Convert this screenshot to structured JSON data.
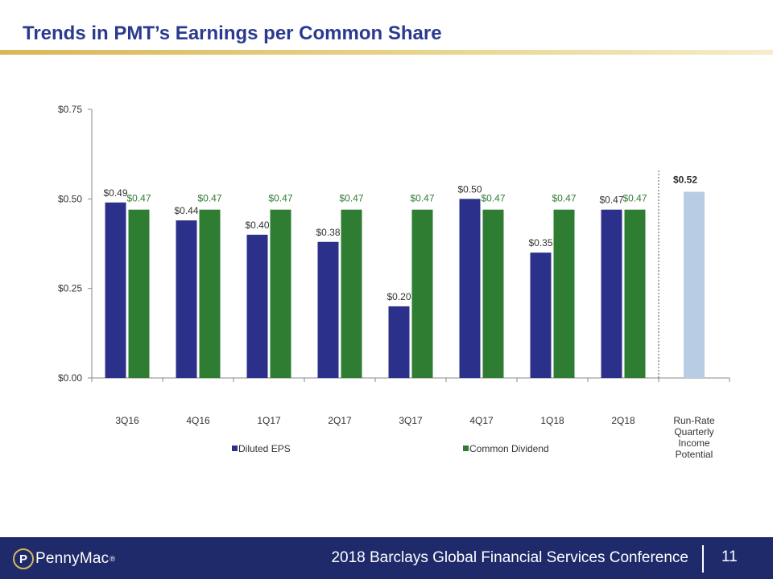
{
  "page": {
    "title": "Trends in PMT’s Earnings per Common Share"
  },
  "colors": {
    "eps": "#2b318a",
    "dividend": "#2e7d32",
    "run_rate": "#b8cce4",
    "title": "#2b3a8f",
    "footer": "#1f2a6b"
  },
  "chart_data": {
    "type": "bar",
    "title": "",
    "categories": [
      "3Q16",
      "4Q16",
      "1Q17",
      "2Q17",
      "3Q17",
      "4Q17",
      "1Q18",
      "2Q18"
    ],
    "series": [
      {
        "name": "Diluted EPS",
        "values": [
          0.49,
          0.44,
          0.4,
          0.38,
          0.2,
          0.5,
          0.35,
          0.47
        ],
        "labels": [
          "$0.49",
          "$0.44",
          "$0.40",
          "$0.38",
          "$0.20",
          "$0.50",
          "$0.35",
          "$0.47"
        ]
      },
      {
        "name": "Common Dividend",
        "values": [
          0.47,
          0.47,
          0.47,
          0.47,
          0.47,
          0.47,
          0.47,
          0.47
        ],
        "labels": [
          "$0.47",
          "$0.47",
          "$0.47",
          "$0.47",
          "$0.47",
          "$0.47",
          "$0.47",
          "$0.47"
        ]
      }
    ],
    "run_rate": {
      "category_lines": [
        "Run-Rate",
        "Quarterly",
        "Income",
        "Potential"
      ],
      "value": 0.52,
      "label": "$0.52"
    },
    "yticks": [
      0.0,
      0.25,
      0.5,
      0.75
    ],
    "ytick_labels": [
      "$0.00",
      "$0.25",
      "$0.50",
      "$0.75"
    ],
    "ylim": [
      0,
      0.75
    ],
    "xlabel": "",
    "ylabel": "",
    "legend_position": "bottom-left"
  },
  "footer": {
    "logo_text": "PennyMac",
    "logo_mark": "P",
    "logo_reg": "®",
    "conference": "2018 Barclays Global Financial Services Conference",
    "page_number": "11"
  }
}
